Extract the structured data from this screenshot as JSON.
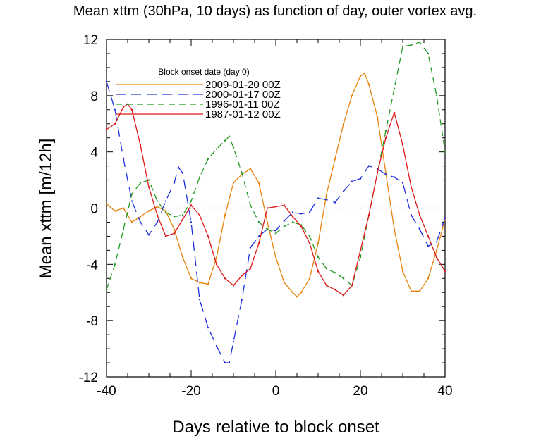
{
  "chart_data": {
    "type": "line",
    "title": "Mean xttm (30hPa, 10 days) as function of day, outer vortex avg.",
    "xlabel": "Days relative to block onset",
    "ylabel": "Mean xttm [m/12h]",
    "xlim": [
      -40,
      40
    ],
    "ylim": [
      -12,
      12
    ],
    "xticks": [
      -40,
      -20,
      0,
      20,
      40
    ],
    "yticks": [
      -12,
      -8,
      -4,
      0,
      4,
      8,
      12
    ],
    "zero_line": true,
    "legend_title": "Block onset date (day 0)",
    "legend_position": "top-left",
    "series": [
      {
        "name": "2009-01-20 00Z",
        "color": "#e8820c",
        "dash": "solid",
        "points": [
          [
            -40,
            0.3
          ],
          [
            -38,
            -0.2
          ],
          [
            -36,
            0.0
          ],
          [
            -34,
            -1.0
          ],
          [
            -32,
            -0.6
          ],
          [
            -30,
            -0.2
          ],
          [
            -28,
            0.1
          ],
          [
            -26,
            -0.2
          ],
          [
            -24,
            -1.5
          ],
          [
            -22,
            -3.5
          ],
          [
            -20,
            -5.0
          ],
          [
            -18,
            -5.3
          ],
          [
            -16,
            -5.4
          ],
          [
            -14,
            -3.5
          ],
          [
            -12,
            -0.5
          ],
          [
            -10,
            1.8
          ],
          [
            -8,
            2.4
          ],
          [
            -6,
            2.8
          ],
          [
            -4,
            1.8
          ],
          [
            -2,
            -1.0
          ],
          [
            0,
            -3.5
          ],
          [
            2,
            -5.3
          ],
          [
            4,
            -6.0
          ],
          [
            5,
            -6.3
          ],
          [
            6,
            -6.0
          ],
          [
            8,
            -5.0
          ],
          [
            10,
            -2.5
          ],
          [
            12,
            1.0
          ],
          [
            14,
            3.5
          ],
          [
            16,
            6.0
          ],
          [
            18,
            8.0
          ],
          [
            20,
            9.4
          ],
          [
            21,
            9.6
          ],
          [
            22,
            8.8
          ],
          [
            24,
            6.5
          ],
          [
            26,
            2.5
          ],
          [
            28,
            -1.5
          ],
          [
            30,
            -4.5
          ],
          [
            32,
            -5.9
          ],
          [
            34,
            -5.9
          ],
          [
            36,
            -5.0
          ],
          [
            38,
            -3.0
          ],
          [
            40,
            -0.8
          ]
        ]
      },
      {
        "name": "2000-01-17 00Z",
        "color": "#1d2fe0",
        "dash": "long-dash",
        "points": [
          [
            -40,
            9.0
          ],
          [
            -38,
            7.0
          ],
          [
            -36,
            3.5
          ],
          [
            -34,
            0.5
          ],
          [
            -32,
            -1.0
          ],
          [
            -30,
            -1.9
          ],
          [
            -28,
            -1.0
          ],
          [
            -26,
            0.5
          ],
          [
            -24,
            1.8
          ],
          [
            -23,
            2.9
          ],
          [
            -22,
            2.5
          ],
          [
            -20,
            -1.0
          ],
          [
            -18,
            -6.5
          ],
          [
            -16,
            -8.5
          ],
          [
            -14,
            -9.8
          ],
          [
            -12,
            -11.0
          ],
          [
            -11,
            -11.0
          ],
          [
            -10,
            -9.5
          ],
          [
            -8,
            -6.5
          ],
          [
            -6,
            -2.8
          ],
          [
            -4,
            -2.0
          ],
          [
            -2,
            -1.5
          ],
          [
            0,
            -1.6
          ],
          [
            2,
            -0.9
          ],
          [
            4,
            -0.3
          ],
          [
            6,
            -0.4
          ],
          [
            8,
            -0.3
          ],
          [
            10,
            0.7
          ],
          [
            12,
            0.6
          ],
          [
            14,
            0.4
          ],
          [
            16,
            1.2
          ],
          [
            18,
            1.9
          ],
          [
            20,
            2.1
          ],
          [
            22,
            3.0
          ],
          [
            24,
            2.8
          ],
          [
            26,
            2.4
          ],
          [
            28,
            2.2
          ],
          [
            30,
            1.8
          ],
          [
            32,
            -0.5
          ],
          [
            34,
            -1.5
          ],
          [
            36,
            -2.7
          ],
          [
            38,
            -2.4
          ],
          [
            40,
            -0.7
          ]
        ]
      },
      {
        "name": "1996-01-11 00Z",
        "color": "#1f9a1f",
        "dash": "dash",
        "points": [
          [
            -40,
            -5.8
          ],
          [
            -38,
            -4.0
          ],
          [
            -36,
            -1.5
          ],
          [
            -34,
            1.0
          ],
          [
            -32,
            1.8
          ],
          [
            -30,
            2.0
          ],
          [
            -28,
            0.5
          ],
          [
            -26,
            -0.3
          ],
          [
            -24,
            -0.6
          ],
          [
            -22,
            -0.5
          ],
          [
            -20,
            0.5
          ],
          [
            -18,
            2.2
          ],
          [
            -16,
            3.5
          ],
          [
            -14,
            4.2
          ],
          [
            -12,
            4.8
          ],
          [
            -11,
            5.1
          ],
          [
            -10,
            4.3
          ],
          [
            -8,
            2.5
          ],
          [
            -6,
            0.2
          ],
          [
            -4,
            -1.0
          ],
          [
            -2,
            -1.5
          ],
          [
            0,
            -1.8
          ],
          [
            2,
            -1.3
          ],
          [
            4,
            -1.0
          ],
          [
            6,
            -1.2
          ],
          [
            8,
            -2.0
          ],
          [
            10,
            -3.5
          ],
          [
            12,
            -4.3
          ],
          [
            14,
            -4.6
          ],
          [
            16,
            -5.0
          ],
          [
            18,
            -5.5
          ],
          [
            20,
            -3.5
          ],
          [
            22,
            -0.5
          ],
          [
            24,
            2.5
          ],
          [
            26,
            5.5
          ],
          [
            28,
            8.5
          ],
          [
            30,
            11.5
          ],
          [
            32,
            11.6
          ],
          [
            34,
            11.8
          ],
          [
            36,
            11.0
          ],
          [
            38,
            8.0
          ],
          [
            40,
            4.0
          ]
        ]
      },
      {
        "name": "1987-01-12 00Z",
        "color": "#e01818",
        "dash": "solid",
        "points": [
          [
            -40,
            5.6
          ],
          [
            -38,
            6.0
          ],
          [
            -36,
            7.2
          ],
          [
            -35,
            7.4
          ],
          [
            -34,
            7.0
          ],
          [
            -32,
            4.5
          ],
          [
            -30,
            1.5
          ],
          [
            -28,
            -0.5
          ],
          [
            -26,
            -2.0
          ],
          [
            -24,
            -1.8
          ],
          [
            -22,
            -0.8
          ],
          [
            -20,
            0.2
          ],
          [
            -18,
            -0.5
          ],
          [
            -16,
            -2.0
          ],
          [
            -14,
            -4.0
          ],
          [
            -12,
            -5.0
          ],
          [
            -10,
            -5.5
          ],
          [
            -8,
            -4.8
          ],
          [
            -6,
            -4.3
          ],
          [
            -4,
            -2.5
          ],
          [
            -2,
            0.0
          ],
          [
            0,
            0.1
          ],
          [
            2,
            0.2
          ],
          [
            4,
            -0.6
          ],
          [
            6,
            -1.3
          ],
          [
            8,
            -2.5
          ],
          [
            10,
            -4.5
          ],
          [
            12,
            -5.5
          ],
          [
            14,
            -5.8
          ],
          [
            16,
            -6.2
          ],
          [
            18,
            -5.5
          ],
          [
            20,
            -3.0
          ],
          [
            22,
            -0.5
          ],
          [
            24,
            2.5
          ],
          [
            26,
            5.0
          ],
          [
            28,
            6.8
          ],
          [
            30,
            4.5
          ],
          [
            32,
            1.5
          ],
          [
            34,
            -0.5
          ],
          [
            36,
            -2.0
          ],
          [
            38,
            -3.5
          ],
          [
            40,
            -4.5
          ]
        ]
      }
    ]
  }
}
